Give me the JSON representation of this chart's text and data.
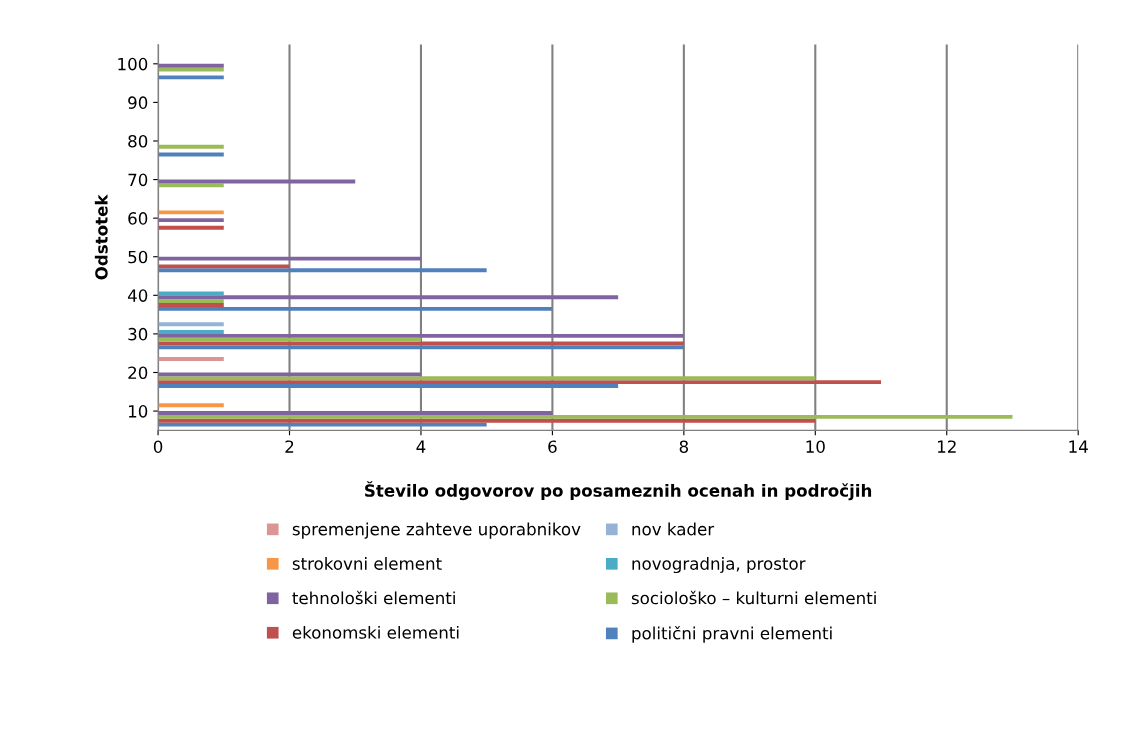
{
  "chart_data": {
    "type": "bar",
    "orientation": "horizontal",
    "xlabel": "Število odgovorov po posameznih ocenah in področjih",
    "ylabel": "Odstotek",
    "categories": [
      "100",
      "90",
      "80",
      "70",
      "60",
      "50",
      "40",
      "30",
      "20",
      "10"
    ],
    "series": [
      {
        "name": "politični pravni elementi",
        "color": "#4f81bd",
        "values": [
          1,
          0,
          1,
          0,
          0,
          5,
          6,
          8,
          7,
          5
        ]
      },
      {
        "name": "ekonomski elementi",
        "color": "#c0504d",
        "values": [
          0,
          0,
          0,
          0,
          1,
          2,
          1,
          8,
          11,
          10
        ]
      },
      {
        "name": "sociološko – kulturni elementi",
        "color": "#9bbb59",
        "values": [
          1,
          0,
          1,
          1,
          0,
          0,
          1,
          4,
          10,
          13
        ]
      },
      {
        "name": "tehnološki elementi",
        "color": "#8064a2",
        "values": [
          1,
          0,
          0,
          3,
          1,
          4,
          7,
          8,
          4,
          6
        ]
      },
      {
        "name": "novogradnja, prostor",
        "color": "#4bacc6",
        "values": [
          0,
          0,
          0,
          0,
          0,
          0,
          1,
          1,
          0,
          0
        ]
      },
      {
        "name": "strokovni element",
        "color": "#f79646",
        "values": [
          0,
          0,
          0,
          0,
          1,
          0,
          0,
          0,
          0,
          1
        ]
      },
      {
        "name": "nov kader",
        "color": "#95b3d7",
        "values": [
          0,
          0,
          0,
          0,
          0,
          0,
          0,
          1,
          0,
          0
        ]
      },
      {
        "name": "spremenjene zahteve uporabnikov",
        "color": "#d99694",
        "values": [
          0,
          0,
          0,
          0,
          0,
          0,
          0,
          0,
          1,
          0
        ]
      }
    ],
    "xlim": [
      0,
      14
    ],
    "xticks": [
      0,
      2,
      4,
      6,
      8,
      10,
      12,
      14
    ],
    "grid": "x",
    "legend": "bottom"
  }
}
